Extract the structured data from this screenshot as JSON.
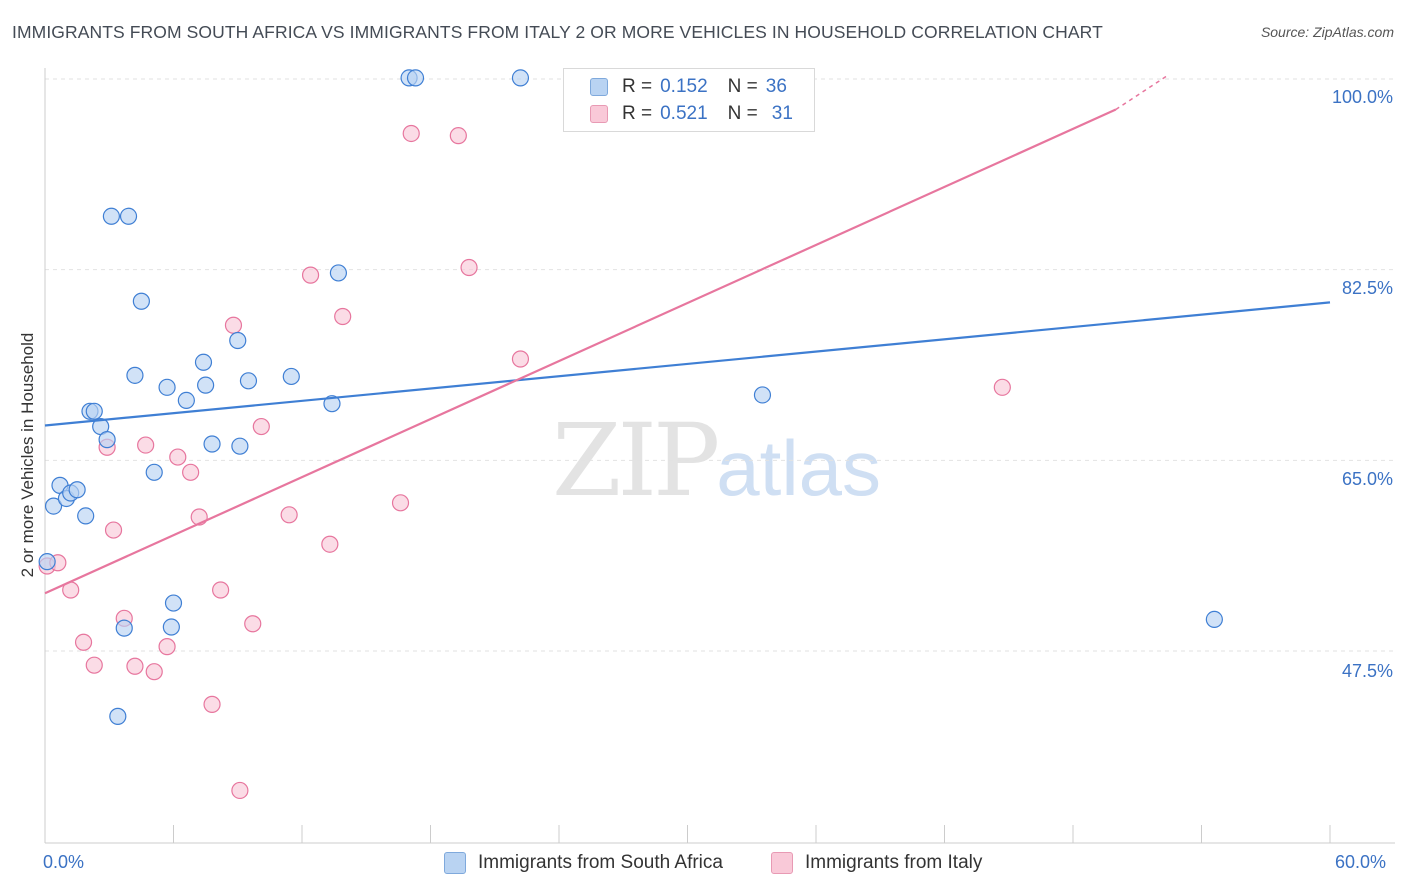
{
  "header": {
    "title": "IMMIGRANTS FROM SOUTH AFRICA VS IMMIGRANTS FROM ITALY 2 OR MORE VEHICLES IN HOUSEHOLD CORRELATION CHART",
    "source": "Source: ZipAtlas.com"
  },
  "legend": {
    "row1": {
      "r_label": "R =",
      "r_value": "0.152",
      "n_label": "N =",
      "n_value": "36"
    },
    "row2": {
      "r_label": "R =",
      "r_value": "0.521",
      "n_label": "N =",
      "n_value": "31"
    }
  },
  "watermark": {
    "zip": "ZIP",
    "atlas": "atlas"
  },
  "colors": {
    "blue": "#3f7fd4",
    "blue_fill": "#b9d3f2",
    "pink": "#e7769e",
    "pink_fill": "#f9c9d8"
  },
  "chart_data": {
    "type": "scatter",
    "title": "IMMIGRANTS FROM SOUTH AFRICA VS IMMIGRANTS FROM ITALY 2 OR MORE VEHICLES IN HOUSEHOLD CORRELATION CHART",
    "xlabel": "",
    "ylabel": "2 or more Vehicles in Household",
    "xlim": [
      0,
      60
    ],
    "ylim": [
      30,
      100
    ],
    "x_tick_labels": [
      "0.0%",
      "60.0%"
    ],
    "y_tick_labels": [
      "100.0%",
      "82.5%",
      "65.0%",
      "47.5%"
    ],
    "y_ticks": [
      100,
      82.5,
      65,
      47.5
    ],
    "series": [
      {
        "name": "Immigrants from South Africa",
        "R": 0.152,
        "N": 36,
        "trend": {
          "x": [
            0,
            60
          ],
          "y": [
            68.2,
            79.5
          ]
        },
        "points": [
          {
            "x": 0.1,
            "y": 55.7
          },
          {
            "x": 0.4,
            "y": 60.8
          },
          {
            "x": 0.7,
            "y": 62.7
          },
          {
            "x": 1.0,
            "y": 61.5
          },
          {
            "x": 1.2,
            "y": 62.0
          },
          {
            "x": 1.5,
            "y": 62.3
          },
          {
            "x": 1.9,
            "y": 59.9
          },
          {
            "x": 2.1,
            "y": 69.5
          },
          {
            "x": 2.3,
            "y": 69.5
          },
          {
            "x": 2.6,
            "y": 68.1
          },
          {
            "x": 2.9,
            "y": 66.9
          },
          {
            "x": 3.1,
            "y": 87.4
          },
          {
            "x": 3.4,
            "y": 41.5
          },
          {
            "x": 3.7,
            "y": 49.6
          },
          {
            "x": 3.9,
            "y": 87.4
          },
          {
            "x": 4.2,
            "y": 72.8
          },
          {
            "x": 4.5,
            "y": 79.6
          },
          {
            "x": 5.1,
            "y": 63.9
          },
          {
            "x": 5.7,
            "y": 71.7
          },
          {
            "x": 5.9,
            "y": 49.7
          },
          {
            "x": 6.0,
            "y": 51.9
          },
          {
            "x": 6.6,
            "y": 70.5
          },
          {
            "x": 7.4,
            "y": 74.0
          },
          {
            "x": 7.5,
            "y": 71.9
          },
          {
            "x": 7.8,
            "y": 66.5
          },
          {
            "x": 9.0,
            "y": 76.0
          },
          {
            "x": 9.1,
            "y": 66.3
          },
          {
            "x": 9.5,
            "y": 72.3
          },
          {
            "x": 11.5,
            "y": 72.7
          },
          {
            "x": 13.4,
            "y": 70.2
          },
          {
            "x": 13.7,
            "y": 82.2
          },
          {
            "x": 17.0,
            "y": 100.1
          },
          {
            "x": 17.3,
            "y": 100.1
          },
          {
            "x": 22.2,
            "y": 100.1
          },
          {
            "x": 33.5,
            "y": 71.0
          },
          {
            "x": 54.6,
            "y": 50.4
          }
        ]
      },
      {
        "name": "Immigrants from Italy",
        "R": 0.521,
        "N": 31,
        "trend": {
          "x": [
            0,
            50
          ],
          "y": [
            52.8,
            97.2
          ]
        },
        "trend_dashed_to": {
          "x": 52.4,
          "y": 100.3
        },
        "points": [
          {
            "x": 0.1,
            "y": 55.3
          },
          {
            "x": 0.6,
            "y": 55.6
          },
          {
            "x": 1.2,
            "y": 53.1
          },
          {
            "x": 1.8,
            "y": 48.3
          },
          {
            "x": 2.3,
            "y": 46.2
          },
          {
            "x": 2.9,
            "y": 66.2
          },
          {
            "x": 3.2,
            "y": 58.6
          },
          {
            "x": 3.7,
            "y": 50.5
          },
          {
            "x": 4.2,
            "y": 46.1
          },
          {
            "x": 4.7,
            "y": 66.4
          },
          {
            "x": 5.1,
            "y": 45.6
          },
          {
            "x": 5.7,
            "y": 47.9
          },
          {
            "x": 6.2,
            "y": 65.3
          },
          {
            "x": 6.8,
            "y": 63.9
          },
          {
            "x": 7.2,
            "y": 59.8
          },
          {
            "x": 7.8,
            "y": 42.6
          },
          {
            "x": 8.2,
            "y": 53.1
          },
          {
            "x": 8.8,
            "y": 77.4
          },
          {
            "x": 9.1,
            "y": 34.7
          },
          {
            "x": 9.7,
            "y": 50.0
          },
          {
            "x": 10.1,
            "y": 68.1
          },
          {
            "x": 11.4,
            "y": 60.0
          },
          {
            "x": 12.4,
            "y": 82.0
          },
          {
            "x": 13.3,
            "y": 57.3
          },
          {
            "x": 13.9,
            "y": 78.2
          },
          {
            "x": 16.6,
            "y": 61.1
          },
          {
            "x": 17.1,
            "y": 95.0
          },
          {
            "x": 19.3,
            "y": 94.8
          },
          {
            "x": 19.8,
            "y": 82.7
          },
          {
            "x": 22.2,
            "y": 74.3
          },
          {
            "x": 44.7,
            "y": 71.7
          }
        ]
      }
    ]
  },
  "bottom_legend": {
    "item1": "Immigrants from South Africa",
    "item2": "Immigrants from Italy"
  },
  "axes": {
    "x_min_label": "0.0%",
    "x_max_label": "60.0%",
    "y_labels": [
      "100.0%",
      "82.5%",
      "65.0%",
      "47.5%"
    ],
    "y_title": "2 or more Vehicles in Household"
  }
}
